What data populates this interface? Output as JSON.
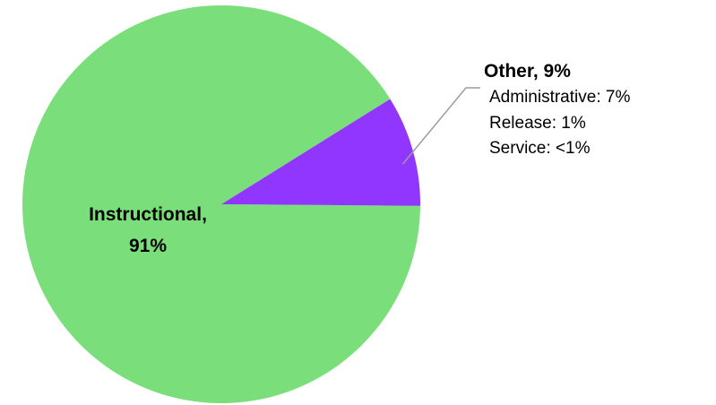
{
  "chart_data": {
    "type": "pie",
    "slices": [
      {
        "label": "Instructional",
        "value": 91,
        "color": "#7ADE7A"
      },
      {
        "label": "Other",
        "value": 9,
        "color": "#9036FF"
      }
    ],
    "labels": {
      "instructional_line1": "Instructional,",
      "instructional_line2": "91%",
      "other_title": "Other, 9%"
    },
    "other_breakdown": [
      {
        "text": "Administrative: 7%"
      },
      {
        "text": "Release: 1%"
      },
      {
        "text": "Service: <1%"
      }
    ]
  }
}
